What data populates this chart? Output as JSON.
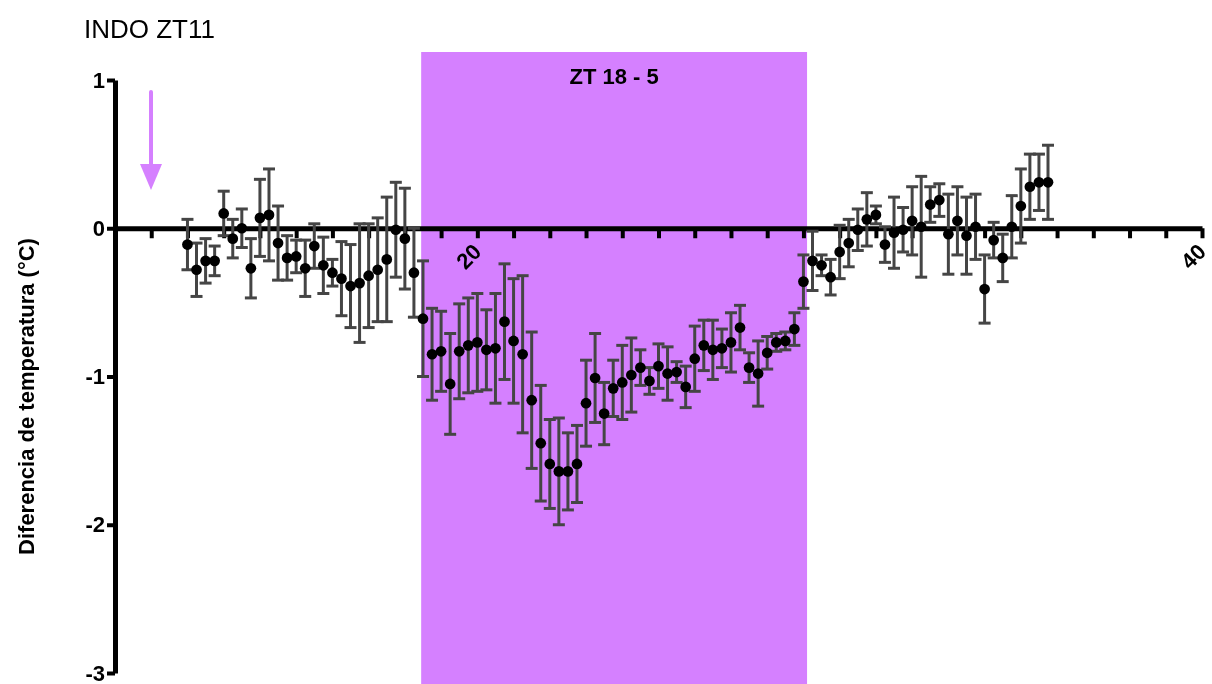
{
  "chart_data": {
    "type": "scatter",
    "title": "INDO ZT11",
    "ylabel": "Diferencia de temperatura (°C)",
    "xlim": [
      10,
      40
    ],
    "xticks": [
      {
        "value": 10,
        "label": null
      },
      {
        "value": 11,
        "label": null
      },
      {
        "value": 12,
        "label": null
      },
      {
        "value": 13,
        "label": null
      },
      {
        "value": 14,
        "label": null
      },
      {
        "value": 15,
        "label": null
      },
      {
        "value": 16,
        "label": null
      },
      {
        "value": 17,
        "label": null
      },
      {
        "value": 18,
        "label": null
      },
      {
        "value": 19,
        "label": null
      },
      20,
      {
        "value": 21,
        "label": null
      },
      {
        "value": 22,
        "label": null
      },
      {
        "value": 23,
        "label": null
      },
      {
        "value": 24,
        "label": null
      },
      {
        "value": 25,
        "label": null
      },
      {
        "value": 26,
        "label": null
      },
      {
        "value": 27,
        "label": null
      },
      {
        "value": 28,
        "label": null
      },
      {
        "value": 29,
        "label": null
      },
      {
        "value": 30,
        "label": null
      },
      {
        "value": 31,
        "label": null
      },
      {
        "value": 32,
        "label": null
      },
      {
        "value": 33,
        "label": null
      },
      {
        "value": 34,
        "label": null
      },
      {
        "value": 35,
        "label": null
      },
      {
        "value": 36,
        "label": null
      },
      {
        "value": 37,
        "label": null
      },
      {
        "value": 38,
        "label": null
      },
      {
        "value": 39,
        "label": null
      },
      40
    ],
    "ylim": [
      -3,
      1
    ],
    "yticks": [
      -3,
      -2,
      -1,
      0,
      1
    ],
    "grid": false,
    "marker": "circle",
    "bands": [
      {
        "axis": "x",
        "from": 18.45,
        "to": 29.1,
        "label": "ZT 18 - 5",
        "color": "#d580ff"
      }
    ],
    "x": [
      12,
      12.25,
      12.5,
      12.75,
      13,
      13.25,
      13.5,
      13.75,
      14,
      14.25,
      14.5,
      14.75,
      15,
      15.25,
      15.5,
      15.75,
      16,
      16.25,
      16.5,
      16.75,
      17,
      17.25,
      17.5,
      17.75,
      18,
      18.25,
      18.5,
      18.75,
      19,
      19.25,
      19.5,
      19.75,
      20,
      20.25,
      20.5,
      20.75,
      21,
      21.25,
      21.5,
      21.75,
      22,
      22.25,
      22.5,
      22.75,
      23,
      23.25,
      23.5,
      23.75,
      24,
      24.25,
      24.5,
      24.75,
      25,
      25.25,
      25.5,
      25.75,
      26,
      26.25,
      26.5,
      26.75,
      27,
      27.25,
      27.5,
      27.75,
      28,
      28.25,
      28.5,
      28.75,
      29,
      29.25,
      29.5,
      29.75,
      30,
      30.25,
      30.5,
      30.75,
      31,
      31.25,
      31.5,
      31.75,
      32,
      32.25,
      32.5,
      32.75,
      33,
      33.25,
      33.5,
      33.75,
      34,
      34.25,
      34.5,
      34.75,
      35,
      35.25,
      35.5,
      35.75
    ],
    "series": [
      {
        "color": "#000000",
        "values": [
          -0.11,
          -0.28,
          -0.22,
          -0.22,
          0.1,
          -0.07,
          0,
          -0.27,
          0.07,
          0.09,
          -0.1,
          -0.2,
          -0.19,
          -0.27,
          -0.12,
          -0.25,
          -0.3,
          -0.34,
          -0.39,
          -0.37,
          -0.32,
          -0.28,
          -0.21,
          -0.01,
          -0.07,
          -0.3,
          -0.61,
          -0.85,
          -0.83,
          -1.05,
          -0.83,
          -0.79,
          -0.77,
          -0.82,
          -0.81,
          -0.63,
          -0.76,
          -0.85,
          -1.16,
          -1.45,
          -1.59,
          -1.64,
          -1.64,
          -1.59,
          -1.18,
          -1.01,
          -1.25,
          -1.08,
          -1.04,
          -0.99,
          -0.94,
          -1.03,
          -0.93,
          -0.98,
          -0.97,
          -1.07,
          -0.88,
          -0.79,
          -0.82,
          -0.81,
          -0.77,
          -0.67,
          -0.94,
          -0.98,
          -0.84,
          -0.77,
          -0.76,
          -0.68,
          -0.36,
          -0.22,
          -0.25,
          -0.33,
          -0.16,
          -0.1,
          -0.01,
          0.06,
          0.09,
          -0.11,
          -0.03,
          -0.01,
          0.05,
          0.01,
          0.16,
          0.19,
          -0.04,
          0.05,
          -0.05,
          0.01,
          -0.41,
          -0.08,
          -0.2,
          0.01,
          0.15,
          0.28,
          0.31,
          0.31
        ],
        "errors": [
          0.17,
          0.18,
          0.15,
          0.1,
          0.15,
          0.13,
          0.13,
          0.2,
          0.26,
          0.31,
          0.25,
          0.15,
          0.11,
          0.19,
          0.15,
          0.19,
          0.09,
          0.25,
          0.28,
          0.4,
          0.35,
          0.35,
          0.42,
          0.32,
          0.34,
          0.3,
          0.39,
          0.31,
          0.27,
          0.34,
          0.32,
          0.32,
          0.33,
          0.27,
          0.37,
          0.39,
          0.42,
          0.53,
          0.46,
          0.39,
          0.3,
          0.36,
          0.26,
          0.26,
          0.29,
          0.3,
          0.21,
          0.19,
          0.25,
          0.25,
          0.12,
          0.09,
          0.15,
          0.18,
          0.07,
          0.14,
          0.22,
          0.17,
          0.2,
          0.13,
          0.2,
          0.15,
          0.1,
          0.22,
          0.11,
          0.06,
          0.06,
          0.11,
          0.18,
          0.2,
          0.07,
          0.12,
          0.18,
          0.16,
          0.14,
          0.18,
          0.06,
          0.12,
          0.24,
          0.15,
          0.23,
          0.34,
          0.12,
          0.11,
          0.27,
          0.23,
          0.26,
          0.22,
          0.23,
          0.12,
          0.16,
          0.21,
          0.25,
          0.22,
          0.19,
          0.25
        ]
      }
    ]
  }
}
